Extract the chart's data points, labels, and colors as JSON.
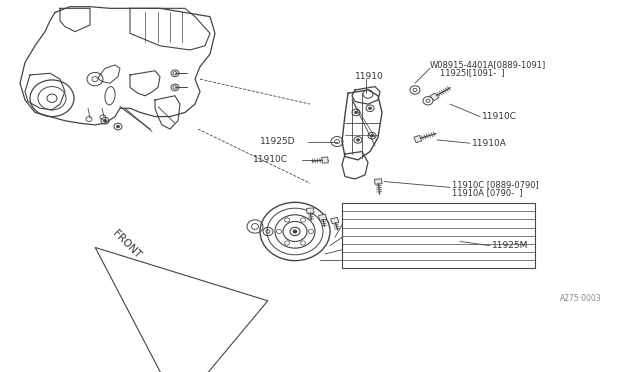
{
  "bg_color": "#ffffff",
  "line_color": "#444444",
  "text_color": "#333333",
  "diagram_id": "A275·0003",
  "labels": {
    "w08915_line1": "W08915-4401A[0889-1091]",
    "w08915_line2": "11925I[1091-  ]",
    "11910": "11910",
    "11910c_top": "11910C",
    "11925d": "11925D",
    "11910c_left": "11910C",
    "11910a": "11910A",
    "11910c_bottom": "11910C [0889-0790]",
    "11910a_bottom": "11910A [0790-  ]",
    "11925m": "11925M",
    "front": "FRONT"
  }
}
